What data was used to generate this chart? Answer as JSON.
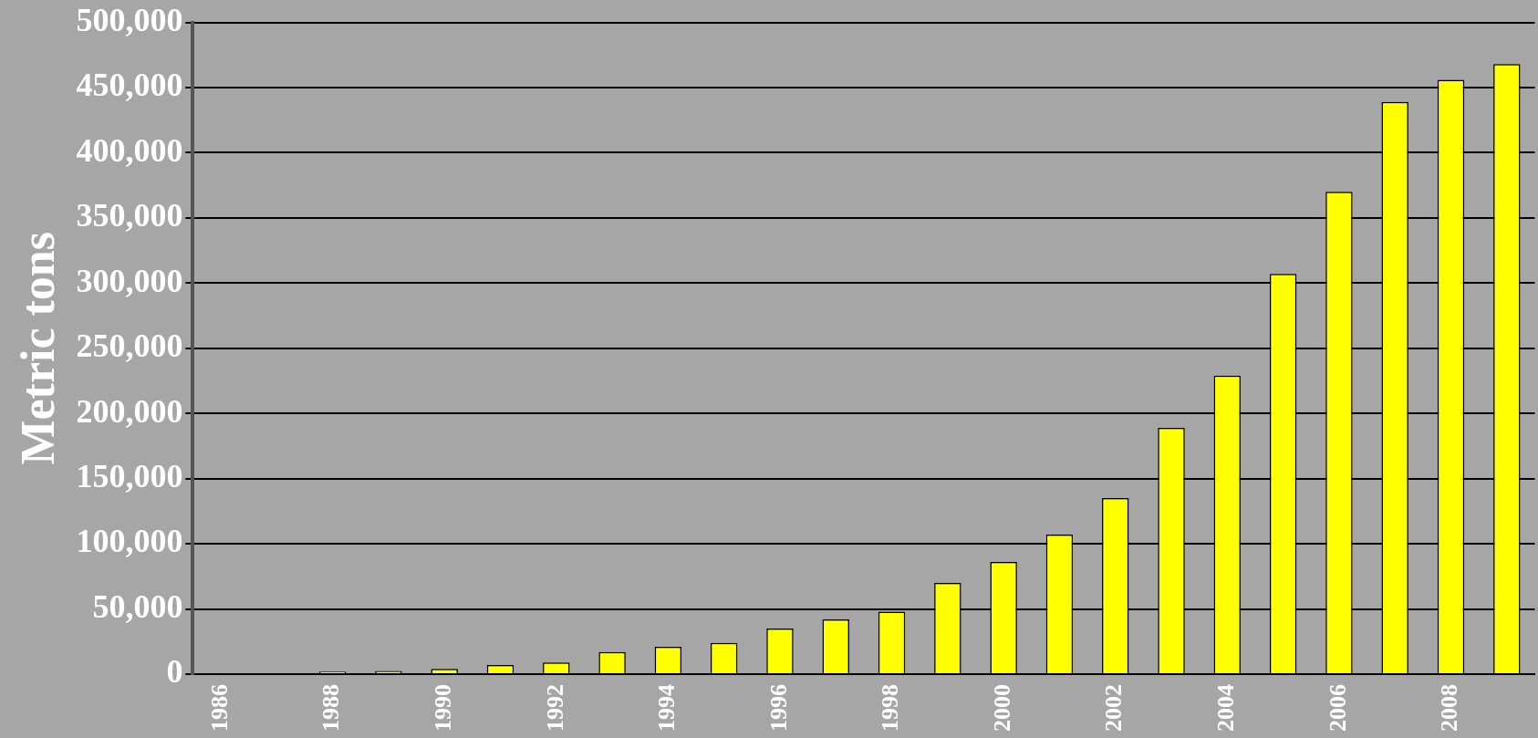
{
  "chart_data": {
    "type": "bar",
    "ylabel": "Metric tons",
    "categories": [
      "1986",
      null,
      "1988",
      null,
      "1990",
      null,
      "1992",
      null,
      "1994",
      null,
      "1996",
      null,
      "1998",
      null,
      "2000",
      null,
      "2002",
      null,
      "2004",
      null,
      "2006",
      null,
      "2008",
      null
    ],
    "values": [
      null,
      null,
      2000,
      2500,
      4000,
      7000,
      9000,
      17000,
      21000,
      24000,
      35000,
      42000,
      48000,
      70000,
      86000,
      107000,
      135000,
      189000,
      229000,
      307000,
      370000,
      439000,
      456000,
      468000
    ],
    "color": "#ffff00",
    "ylim": [
      0,
      500000
    ],
    "yticks": [
      0,
      {
        "value": 50000,
        "label": "50,000"
      },
      {
        "value": 100000,
        "label": "100,000"
      },
      {
        "value": 150000,
        "label": "150,000"
      },
      {
        "value": 200000,
        "label": "200,000"
      },
      {
        "value": 250000,
        "label": "250,000"
      },
      {
        "value": 300000,
        "label": "300,000"
      },
      {
        "value": 350000,
        "label": "350,000"
      },
      {
        "value": 400000,
        "label": "400,000"
      },
      {
        "value": 450000,
        "label": "450,000"
      },
      {
        "value": 500000,
        "label": "500,000"
      }
    ],
    "grid": "y",
    "legend": false
  }
}
